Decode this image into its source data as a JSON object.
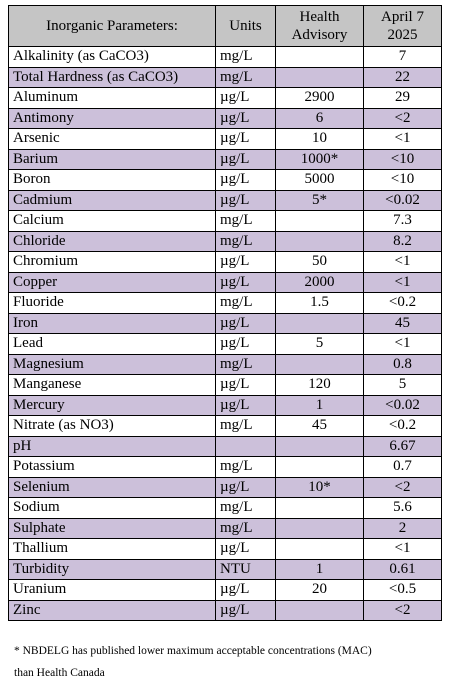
{
  "table": {
    "headers": {
      "parameter": "Inorganic Parameters:",
      "units": "Units",
      "advisory_line1": "Health",
      "advisory_line2": "Advisory",
      "date_line1": "April 7",
      "date_line2": "2025"
    },
    "row_colors": {
      "shaded": "#ccc0da",
      "plain": "#ffffff",
      "header": "#c5c5c5"
    },
    "rows": [
      {
        "name": "Alkalinity (as CaCO3)",
        "units": "mg/L",
        "advisory": "",
        "result": "7",
        "shaded": false
      },
      {
        "name": "Total Hardness (as CaCO3)",
        "units": "mg/L",
        "advisory": "",
        "result": "22",
        "shaded": true
      },
      {
        "name": "Aluminum",
        "units": "µg/L",
        "advisory": "2900",
        "result": "29",
        "shaded": false
      },
      {
        "name": "Antimony",
        "units": "µg/L",
        "advisory": "6",
        "result": "<2",
        "shaded": true
      },
      {
        "name": "Arsenic",
        "units": "µg/L",
        "advisory": "10",
        "result": "<1",
        "shaded": false
      },
      {
        "name": "Barium",
        "units": "µg/L",
        "advisory": "1000*",
        "result": "<10",
        "shaded": true
      },
      {
        "name": "Boron",
        "units": "µg/L",
        "advisory": "5000",
        "result": "<10",
        "shaded": false
      },
      {
        "name": "Cadmium",
        "units": "µg/L",
        "advisory": "5*",
        "result": "<0.02",
        "shaded": true
      },
      {
        "name": "Calcium",
        "units": "mg/L",
        "advisory": "",
        "result": "7.3",
        "shaded": false
      },
      {
        "name": "Chloride",
        "units": "mg/L",
        "advisory": "",
        "result": "8.2",
        "shaded": true
      },
      {
        "name": "Chromium",
        "units": "µg/L",
        "advisory": "50",
        "result": "<1",
        "shaded": false
      },
      {
        "name": "Copper",
        "units": "µg/L",
        "advisory": "2000",
        "result": "<1",
        "shaded": true
      },
      {
        "name": "Fluoride",
        "units": "mg/L",
        "advisory": "1.5",
        "result": "<0.2",
        "shaded": false
      },
      {
        "name": "Iron",
        "units": "µg/L",
        "advisory": "",
        "result": "45",
        "shaded": true
      },
      {
        "name": "Lead",
        "units": "µg/L",
        "advisory": "5",
        "result": "<1",
        "shaded": false
      },
      {
        "name": "Magnesium",
        "units": "mg/L",
        "advisory": "",
        "result": "0.8",
        "shaded": true
      },
      {
        "name": "Manganese",
        "units": "µg/L",
        "advisory": "120",
        "result": "5",
        "shaded": false
      },
      {
        "name": "Mercury",
        "units": "µg/L",
        "advisory": "1",
        "result": "<0.02",
        "shaded": true
      },
      {
        "name": "Nitrate (as NO3)",
        "units": "mg/L",
        "advisory": "45",
        "result": "<0.2",
        "shaded": false
      },
      {
        "name": "pH",
        "units": "",
        "advisory": "",
        "result": "6.67",
        "shaded": true
      },
      {
        "name": "Potassium",
        "units": "mg/L",
        "advisory": "",
        "result": "0.7",
        "shaded": false
      },
      {
        "name": "Selenium",
        "units": "µg/L",
        "advisory": "10*",
        "result": "<2",
        "shaded": true
      },
      {
        "name": "Sodium",
        "units": "mg/L",
        "advisory": "",
        "result": "5.6",
        "shaded": false
      },
      {
        "name": "Sulphate",
        "units": "mg/L",
        "advisory": "",
        "result": "2",
        "shaded": true
      },
      {
        "name": "Thallium",
        "units": "µg/L",
        "advisory": "",
        "result": "<1",
        "shaded": false
      },
      {
        "name": "Turbidity",
        "units": "NTU",
        "advisory": "1",
        "result": "0.61",
        "shaded": true
      },
      {
        "name": "Uranium",
        "units": "µg/L",
        "advisory": "20",
        "result": "<0.5",
        "shaded": false
      },
      {
        "name": "Zinc",
        "units": "µg/L",
        "advisory": "",
        "result": "<2",
        "shaded": true
      }
    ]
  },
  "footnote": {
    "line1": "* NBDELG has published lower maximum acceptable concentrations (MAC)",
    "line2": "than Health Canada"
  }
}
